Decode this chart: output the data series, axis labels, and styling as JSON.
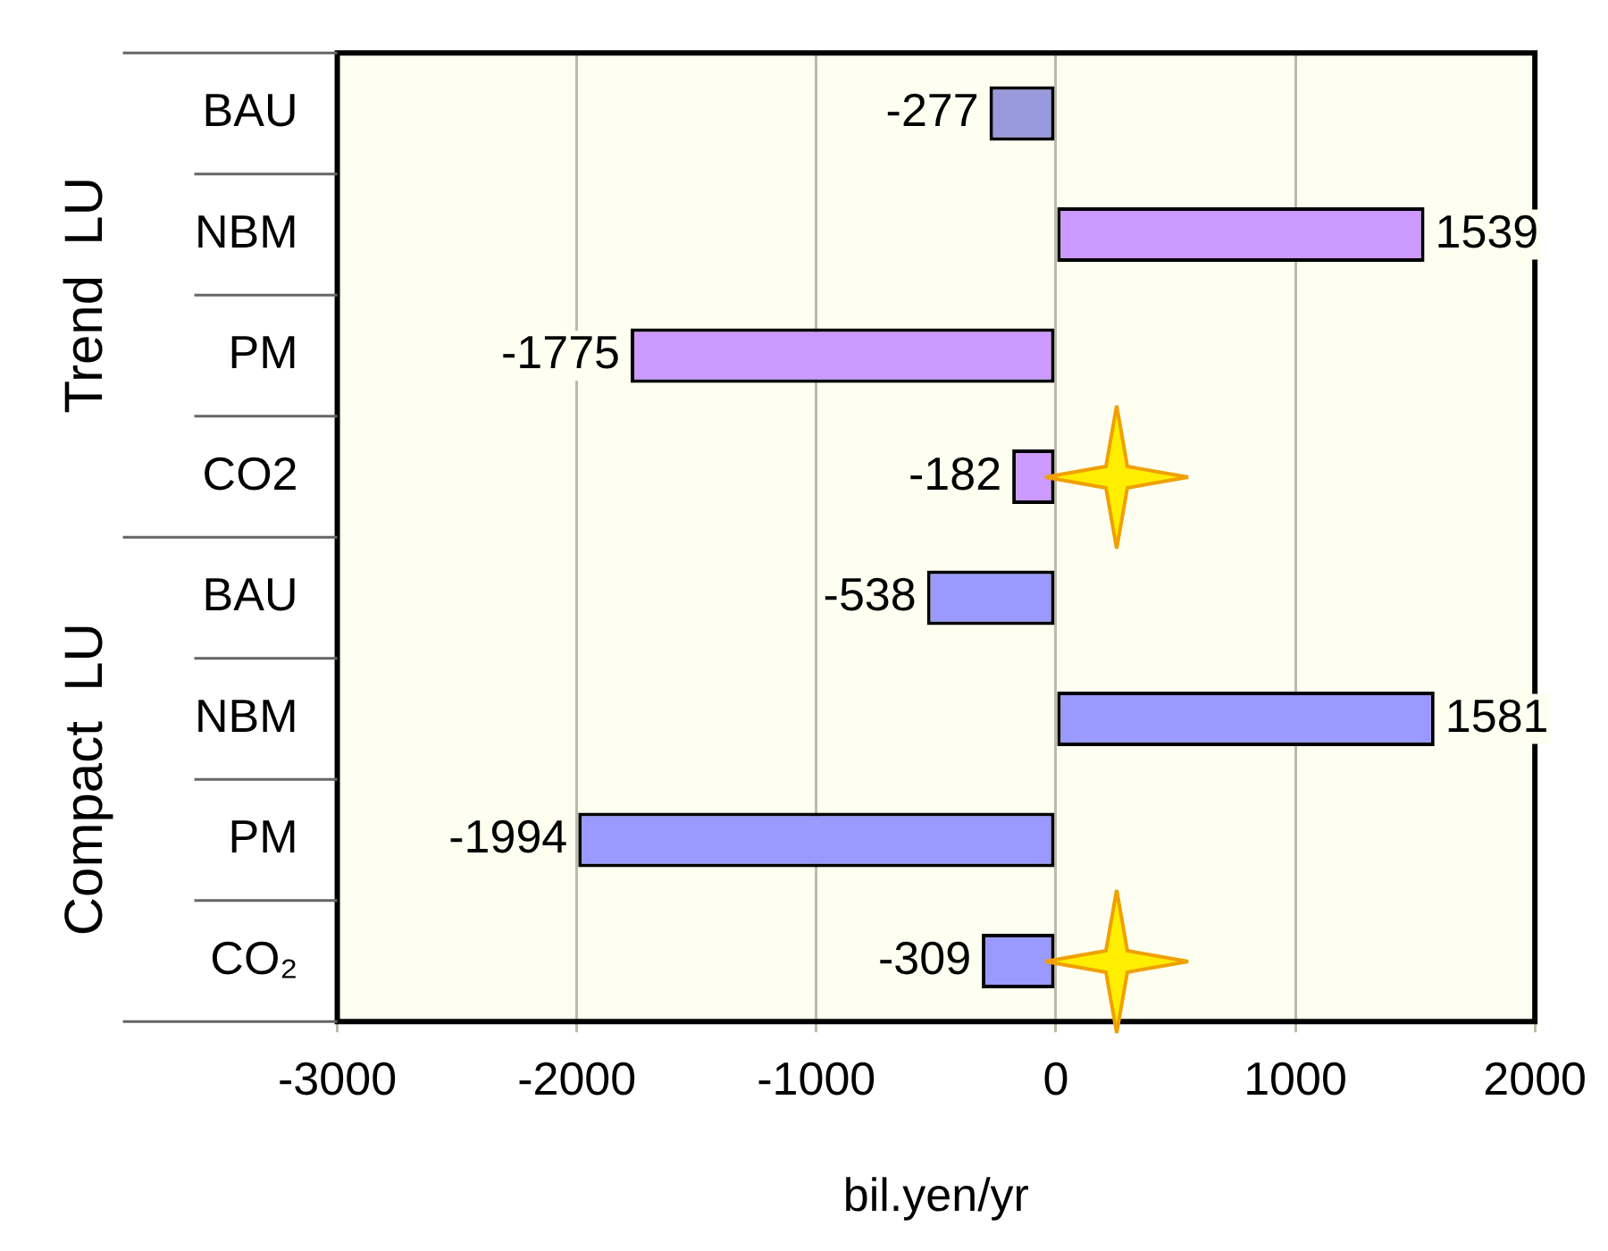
{
  "chart_data": {
    "type": "bar",
    "orientation": "horizontal",
    "xlabel": "bil.yen/yr",
    "categories": [
      "BAU",
      "NBM",
      "PM",
      "CO2",
      "BAU",
      "NBM",
      "PM",
      "CO₂"
    ],
    "values": [
      -277,
      1539,
      -1775,
      -182,
      -538,
      1581,
      -1994,
      -309
    ],
    "colors": [
      "#9999dd",
      "#cc99ff",
      "#cc99ff",
      "#cc99ff",
      "#9999ff",
      "#9999ff",
      "#9999ff",
      "#9999ff"
    ],
    "xlim": [
      -3000,
      2000
    ],
    "xticks": [
      -3000,
      -2000,
      -1000,
      0,
      1000,
      2000
    ],
    "grid": "x",
    "data_labels": true,
    "annotations": [
      "Trend  LU",
      "Compact  LU"
    ]
  }
}
